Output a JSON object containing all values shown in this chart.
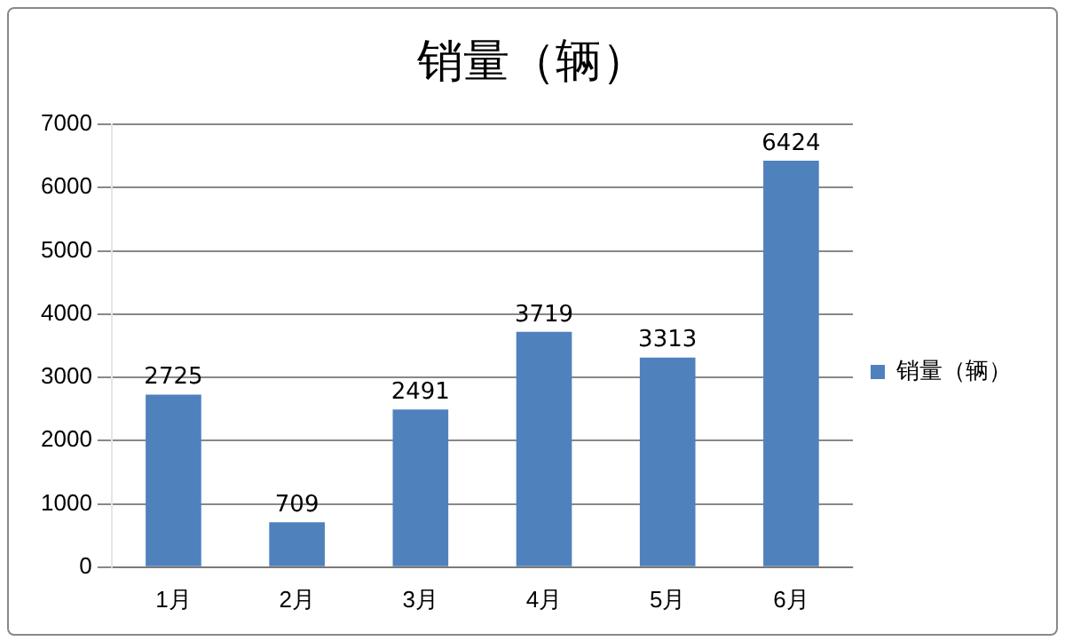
{
  "chart_data": {
    "type": "bar",
    "title": "销量（辆）",
    "categories": [
      "1月",
      "2月",
      "3月",
      "4月",
      "5月",
      "6月"
    ],
    "series": [
      {
        "name": "销量（辆）",
        "color": "#4f81bd",
        "values": [
          2725,
          709,
          2491,
          3719,
          3313,
          6424
        ]
      }
    ],
    "ylim": [
      0,
      7000
    ],
    "yticks": [
      0,
      1000,
      2000,
      3000,
      4000,
      5000,
      6000,
      7000
    ],
    "grid": "y",
    "legend": "right",
    "data_labels": true
  }
}
